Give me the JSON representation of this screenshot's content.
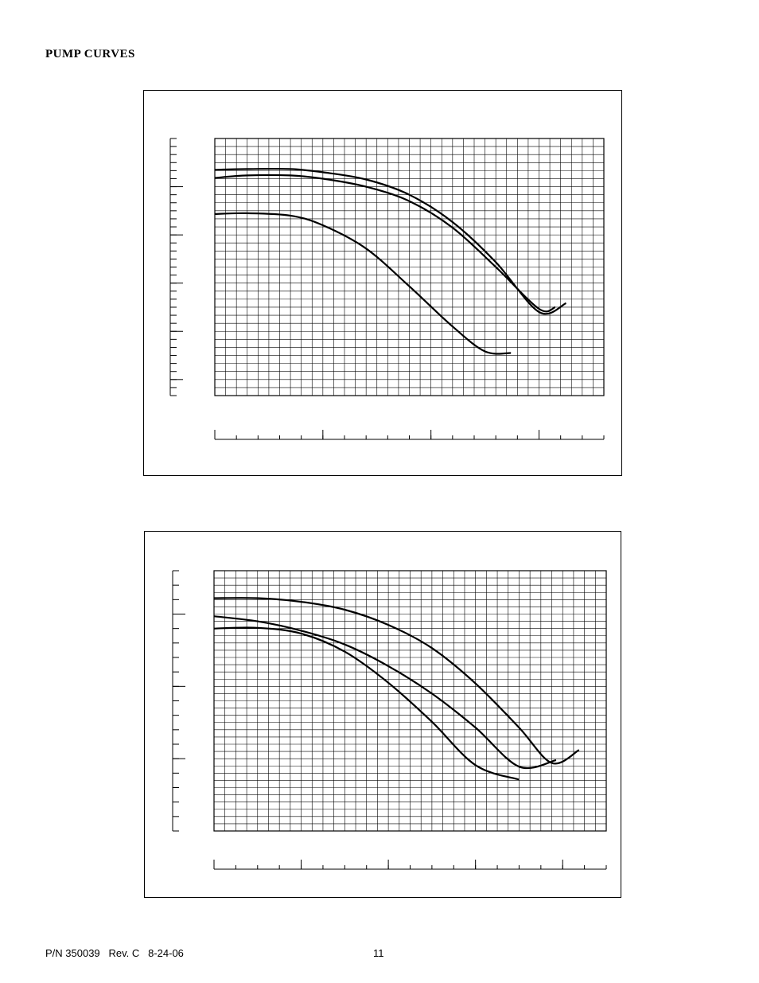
{
  "page": {
    "section_title": "PUMP  CURVES",
    "footer": {
      "part_number": "P/N 350039   Rev. C   8-24-06",
      "page_number": "11"
    }
  },
  "chart_data": [
    {
      "type": "line",
      "title": "",
      "xlabel": "",
      "ylabel": "",
      "grid": true,
      "xlim": [
        0,
        36
      ],
      "ylim": [
        0,
        32
      ],
      "y_major_ticks": [
        2,
        8,
        14,
        20,
        26
      ],
      "x_major_ticks": [
        0,
        10,
        20,
        30
      ],
      "series": [
        {
          "x": [
            0,
            3,
            7,
            10,
            14,
            18,
            22,
            26,
            30,
            32.5
          ],
          "y": [
            28.1,
            28.2,
            28.2,
            27.8,
            26.9,
            25.0,
            21.6,
            16.6,
            10.4,
            11.5
          ]
        },
        {
          "x": [
            0,
            3,
            7,
            10,
            14,
            18,
            22,
            26,
            30,
            31.5
          ],
          "y": [
            27.1,
            27.4,
            27.4,
            27.0,
            26.0,
            24.2,
            20.9,
            16.0,
            10.8,
            11.0
          ]
        },
        {
          "x": [
            0,
            3,
            7,
            10,
            14,
            18,
            22,
            25,
            27.4
          ],
          "y": [
            22.6,
            22.7,
            22.4,
            21.2,
            18.3,
            13.6,
            8.6,
            5.5,
            5.3
          ]
        }
      ]
    },
    {
      "type": "line",
      "title": "",
      "xlabel": "",
      "ylabel": "",
      "grid": true,
      "xlim": [
        0,
        36
      ],
      "ylim": [
        0,
        36
      ],
      "y_major_ticks": [
        10,
        20,
        30
      ],
      "x_major_ticks": [
        0,
        8,
        16,
        24,
        32
      ],
      "series": [
        {
          "x": [
            0,
            4,
            8,
            12,
            16,
            20,
            24,
            28,
            31,
            33.5
          ],
          "y": [
            32.2,
            32.2,
            31.7,
            30.6,
            28.5,
            25.3,
            20.4,
            14.3,
            9.4,
            11.2
          ]
        },
        {
          "x": [
            0,
            4,
            8,
            12,
            16,
            20,
            24,
            28,
            31.4
          ],
          "y": [
            29.7,
            29.0,
            27.7,
            25.8,
            22.8,
            19.0,
            14.3,
            8.9,
            9.8
          ]
        },
        {
          "x": [
            0,
            4,
            8,
            12,
            16,
            20,
            24,
            28
          ],
          "y": [
            28.0,
            28.1,
            27.3,
            24.8,
            20.5,
            15.1,
            9.1,
            7.1
          ]
        }
      ]
    }
  ]
}
